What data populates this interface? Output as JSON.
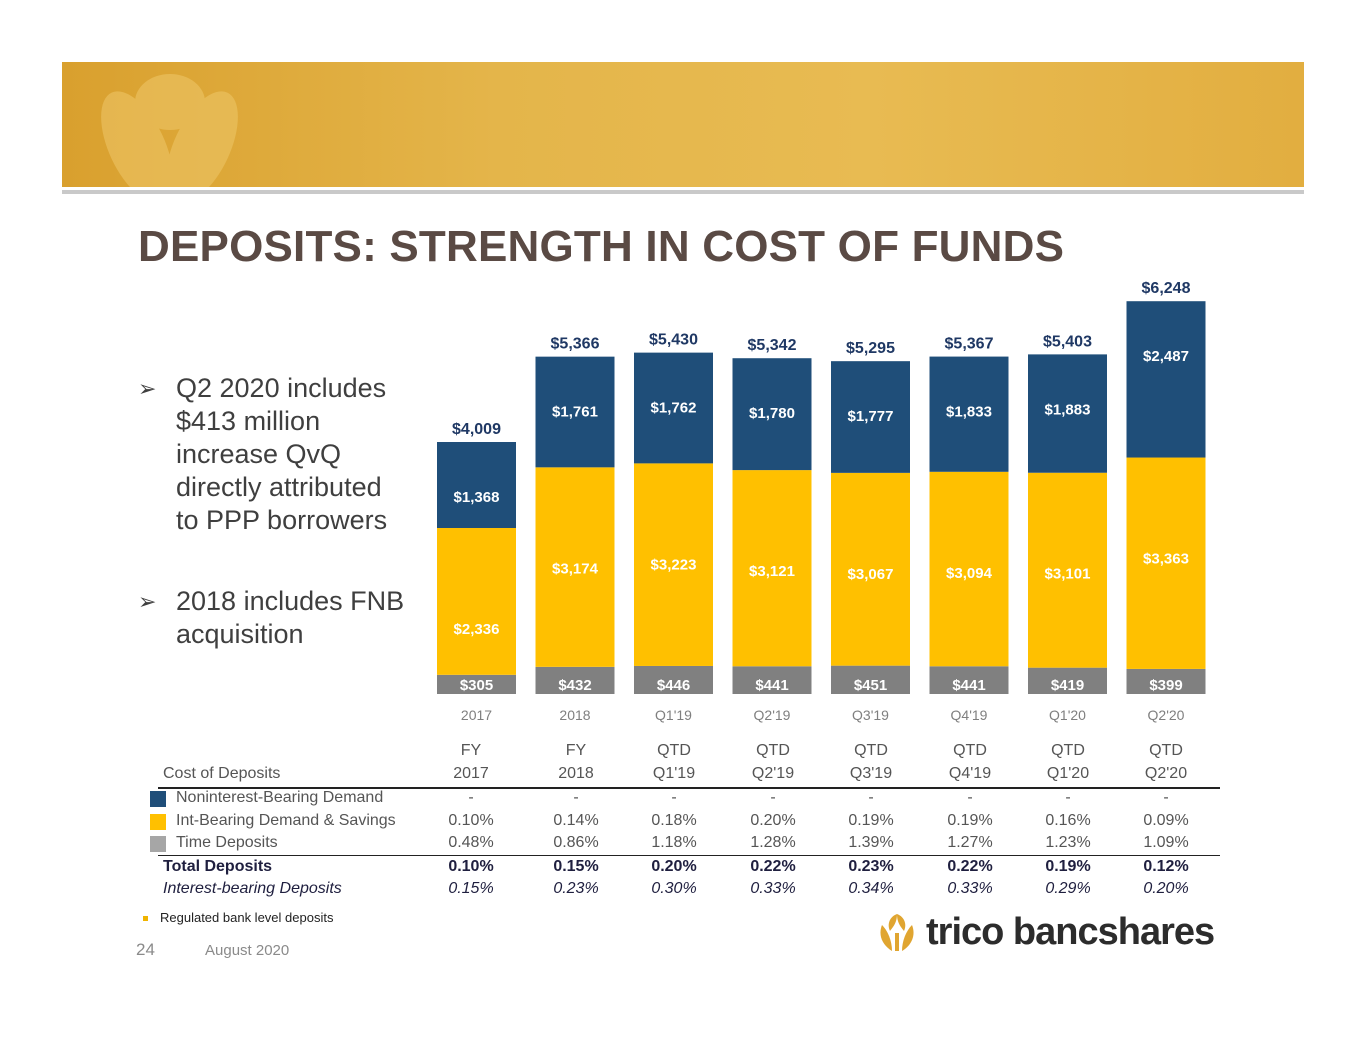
{
  "slide": {
    "title": "DEPOSITS: STRENGTH IN COST OF FUNDS",
    "bullets": [
      {
        "mark": "➢",
        "text": "Q2 2020 includes $413 million increase QvQ directly attributed to PPP borrowers"
      },
      {
        "mark": "➢",
        "text": "2018 includes FNB acquisition"
      }
    ],
    "footnote": "Regulated bank level deposits",
    "page_number": "24",
    "date": "August 2020",
    "logo_text": "trico bancshares"
  },
  "colors": {
    "noninterest": "#1f4e79",
    "int_bearing": "#ffc000",
    "time": "#808080",
    "total_label": "#1f3864",
    "segment_label": "#ffffff"
  },
  "chart_data": {
    "type": "bar",
    "stacked": true,
    "categories": [
      "2017",
      "2018",
      "Q1'19",
      "Q2'19",
      "Q3'19",
      "Q4'19",
      "Q1'20",
      "Q2'20"
    ],
    "series": [
      {
        "values": [
          305,
          432,
          446,
          441,
          451,
          441,
          419,
          399
        ],
        "labels": [
          "$305",
          "$432",
          "$446",
          "$441",
          "$451",
          "$441",
          "$419",
          "$399"
        ]
      },
      {
        "values": [
          2336,
          3174,
          3223,
          3121,
          3067,
          3094,
          3101,
          3363
        ],
        "labels": [
          "$2,336",
          "$3,174",
          "$3,223",
          "$3,121",
          "$3,067",
          "$3,094",
          "$3,101",
          "$3,363"
        ]
      },
      {
        "values": [
          1368,
          1761,
          1762,
          1780,
          1777,
          1833,
          1883,
          2487
        ],
        "labels": [
          "$1,368",
          "$1,761",
          "$1,762",
          "$1,780",
          "$1,777",
          "$1,833",
          "$1,883",
          "$2,487"
        ]
      }
    ],
    "totals": [
      4009,
      5366,
      5430,
      5342,
      5295,
      5367,
      5403,
      6248
    ],
    "total_labels": [
      "$4,009",
      "$5,366",
      "$5,430",
      "$5,342",
      "$5,295",
      "$5,367",
      "$5,403",
      "$6,248"
    ],
    "ylim": [
      0,
      6300
    ],
    "legend": "table-swatches"
  },
  "table": {
    "header_top": [
      "FY",
      "FY",
      "QTD",
      "QTD",
      "QTD",
      "QTD",
      "QTD",
      "QTD"
    ],
    "header_label": "Cost of Deposits",
    "header_bottom": [
      "2017",
      "2018",
      "Q1'19",
      "Q2'19",
      "Q3'19",
      "Q4'19",
      "Q1'20",
      "Q2'20"
    ],
    "rows": [
      {
        "label": "Noninterest-Bearing Demand",
        "values": [
          "-",
          "-",
          "-",
          "-",
          "-",
          "-",
          "-",
          "-"
        ]
      },
      {
        "label": "Int-Bearing Demand & Savings",
        "values": [
          "0.10%",
          "0.14%",
          "0.18%",
          "0.20%",
          "0.19%",
          "0.19%",
          "0.16%",
          "0.09%"
        ]
      },
      {
        "label": "Time Deposits",
        "values": [
          "0.48%",
          "0.86%",
          "1.18%",
          "1.28%",
          "1.39%",
          "1.27%",
          "1.23%",
          "1.09%"
        ]
      }
    ],
    "total": {
      "label": "Total Deposits",
      "values": [
        "0.10%",
        "0.15%",
        "0.20%",
        "0.22%",
        "0.23%",
        "0.22%",
        "0.19%",
        "0.12%"
      ]
    },
    "interest_bearing": {
      "label": "Interest-bearing Deposits",
      "values": [
        "0.15%",
        "0.23%",
        "0.30%",
        "0.33%",
        "0.34%",
        "0.33%",
        "0.29%",
        "0.20%"
      ]
    }
  }
}
